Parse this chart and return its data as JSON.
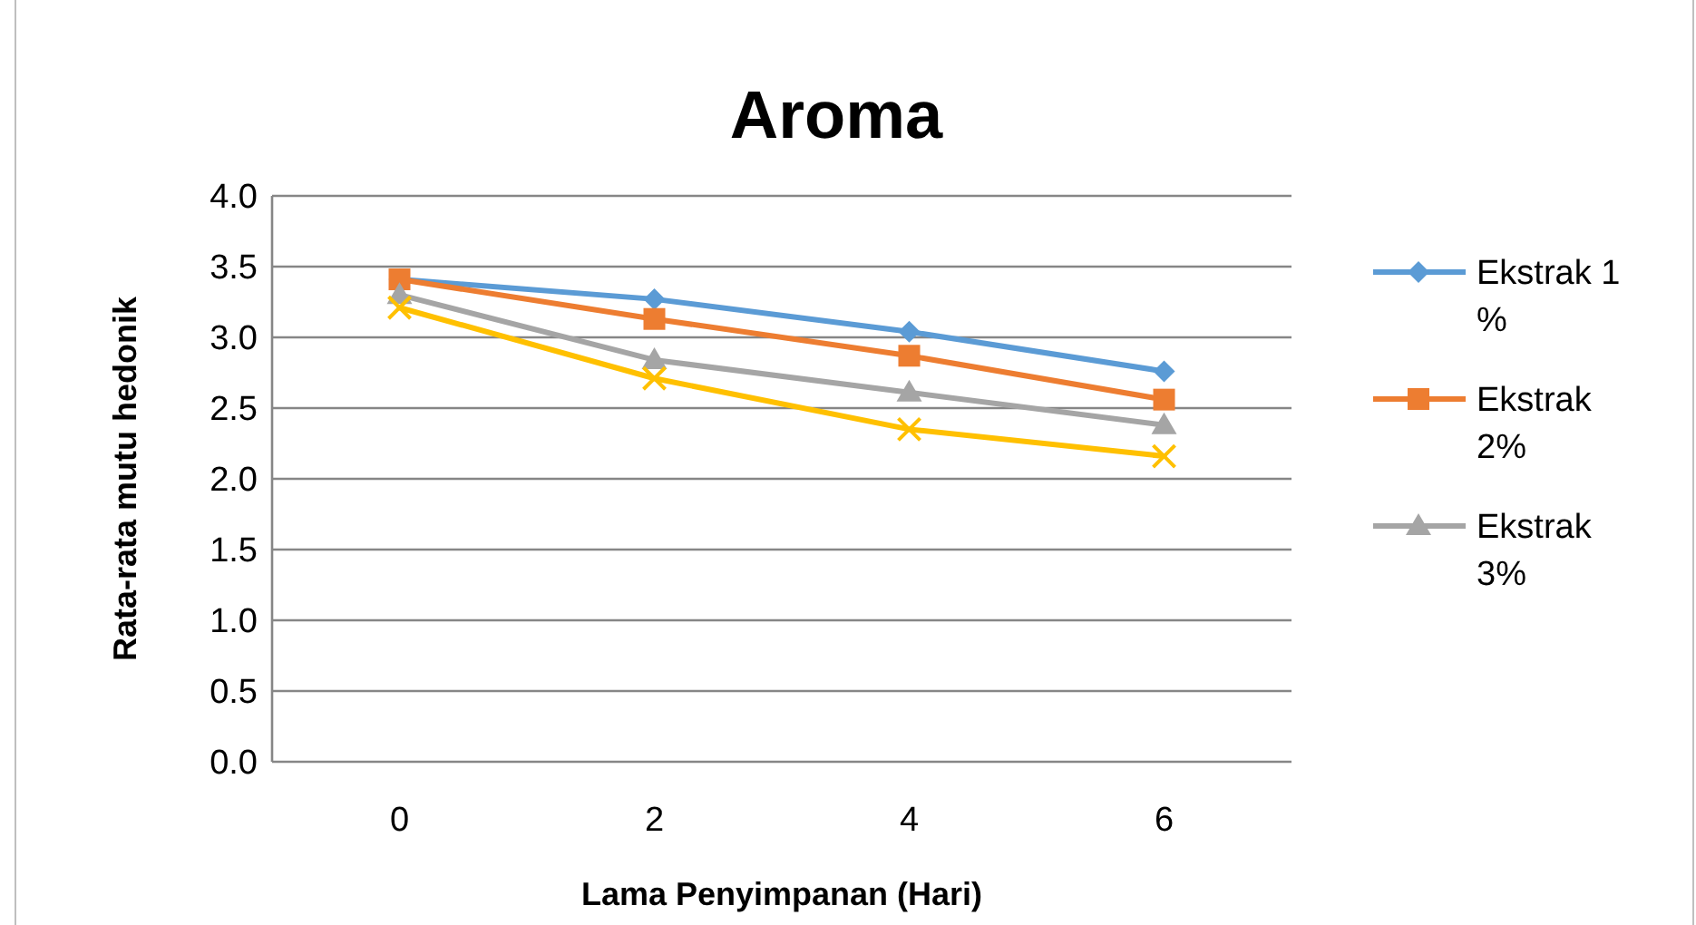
{
  "chart_data": {
    "type": "line",
    "title": "Aroma",
    "xlabel": "Lama Penyimpanan (Hari)",
    "ylabel": "Rata-rata mutu hedonik",
    "categories": [
      "0",
      "2",
      "4",
      "6"
    ],
    "series": [
      {
        "name": "Ekstrak 1 %",
        "color": "#5b9bd5",
        "marker": "diamond",
        "values": [
          3.41,
          3.27,
          3.04,
          2.76
        ]
      },
      {
        "name": "Ekstrak 2%",
        "color": "#ed7d31",
        "marker": "square",
        "values": [
          3.41,
          3.13,
          2.87,
          2.56
        ]
      },
      {
        "name": "Ekstrak 3%",
        "color": "#a5a5a5",
        "marker": "triangle",
        "values": [
          3.3,
          2.84,
          2.61,
          2.38
        ]
      },
      {
        "color": "#ffc000",
        "marker": "cross",
        "values": [
          3.21,
          2.71,
          2.35,
          2.16
        ]
      }
    ],
    "ylim": [
      0,
      4
    ],
    "yticks": [
      {
        "value": 0,
        "label": "0.0"
      },
      {
        "value": 0.5,
        "label": "0.5"
      },
      {
        "value": 1,
        "label": "1.0"
      },
      {
        "value": 1.5,
        "label": "1.5"
      },
      {
        "value": 2,
        "label": "2.0"
      },
      {
        "value": 2.5,
        "label": "2.5"
      },
      {
        "value": 3,
        "label": "3.0"
      },
      {
        "value": 3.5,
        "label": "3.5"
      },
      {
        "value": 4,
        "label": "4.0"
      }
    ],
    "grid": "y",
    "legend": "right",
    "line_style": "solid"
  }
}
